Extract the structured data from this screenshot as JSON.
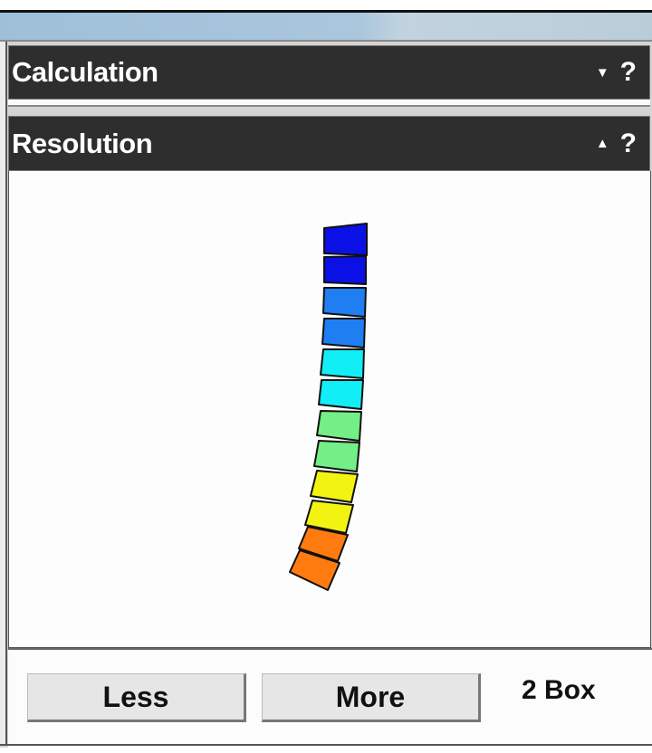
{
  "panels": {
    "calculation": {
      "title": "Calculation",
      "toggle_icon": "triangle-down",
      "help": "?"
    },
    "resolution": {
      "title": "Resolution",
      "toggle_icon": "triangle-up",
      "help": "?"
    }
  },
  "viewer": {
    "segment_colors": [
      "#0a10e6",
      "#0a10e6",
      "#1f7ff2",
      "#1f7ff2",
      "#11eef6",
      "#11eef6",
      "#74ee86",
      "#74ee86",
      "#f3f312",
      "#f3f312",
      "#ff7b10",
      "#ff7b10"
    ]
  },
  "controls": {
    "less_label": "Less",
    "more_label": "More",
    "count_label": "2 Box"
  }
}
